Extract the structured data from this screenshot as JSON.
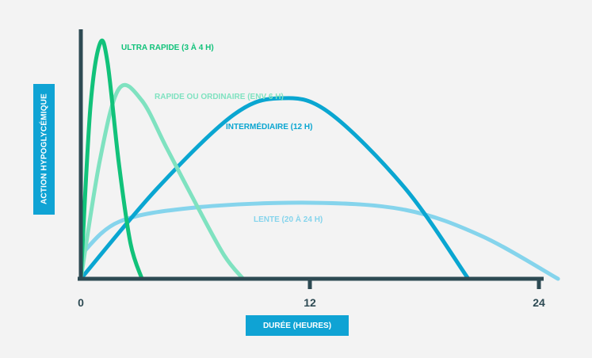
{
  "chart_data": {
    "type": "line",
    "title": "",
    "xlabel": "DURÉE (HEURES)",
    "ylabel": "ACTION HYPOGLYCÉMIQUE",
    "xlim": [
      0,
      24
    ],
    "ylim": [
      0,
      100
    ],
    "x_ticks": [
      "0",
      "12",
      "24"
    ],
    "grid": false,
    "colors": {
      "axis": "#2d4a53",
      "label_box": "#0fa3d4",
      "ultra_rapide": "#11c27a",
      "rapide": "#7fe2c0",
      "intermediaire": "#0aa6d1",
      "lente": "#85d4ec"
    },
    "series": [
      {
        "name": "ULTRA RAPIDE (3 À 4 H)",
        "color": "#11c27a",
        "x": [
          0,
          0.5,
          1.0,
          1.4,
          2.0,
          2.6,
          3.2
        ],
        "y": [
          0,
          72,
          99,
          91,
          48,
          15,
          0
        ]
      },
      {
        "name": "RAPIDE OU ORDINAIRE (ENV 6 H)",
        "color": "#7fe2c0",
        "x": [
          0,
          1.0,
          2.0,
          3.2,
          4.5,
          6.0,
          7.5,
          8.5
        ],
        "y": [
          0,
          50,
          80,
          75,
          55,
          32,
          10,
          0
        ]
      },
      {
        "name": "INTERMÉDIAIRE (12 H)",
        "color": "#0aa6d1",
        "x": [
          0,
          4.0,
          8.0,
          10.5,
          13.0,
          17.0,
          20.3
        ],
        "y": [
          0,
          38,
          69,
          76,
          70,
          38,
          0
        ]
      },
      {
        "name": "LENTE (20 À 24 H)",
        "color": "#85d4ec",
        "x": [
          0,
          2.0,
          6.0,
          12.0,
          17.0,
          21.0,
          25.0
        ],
        "y": [
          10,
          24,
          30,
          32,
          29,
          18,
          0
        ]
      }
    ]
  }
}
